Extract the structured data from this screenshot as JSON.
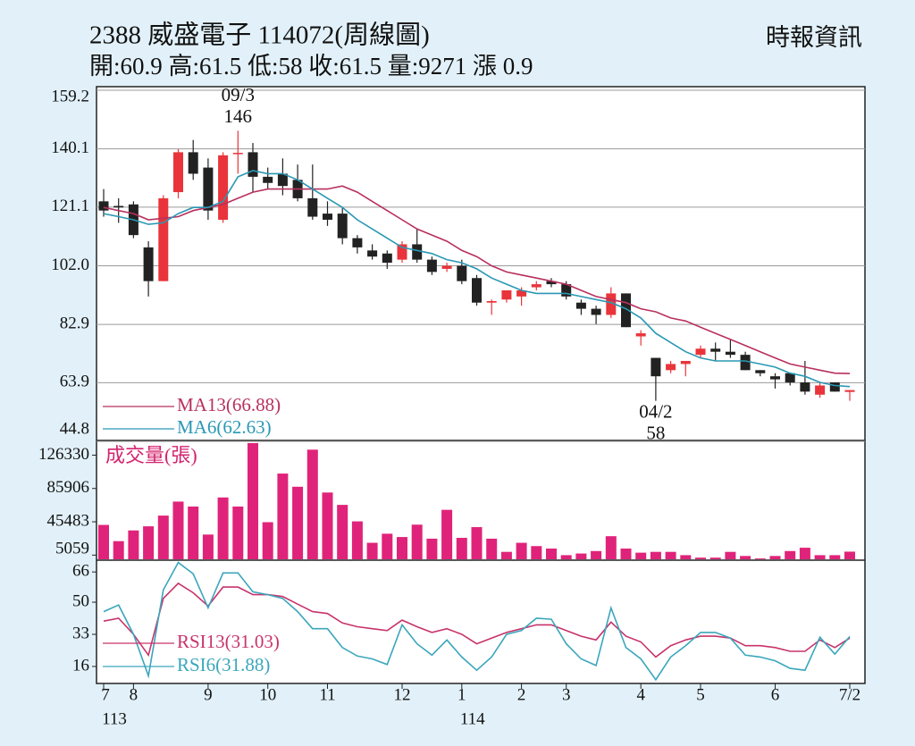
{
  "chart_data": [
    {
      "type": "candlestick",
      "title": "2388  威盛電子 114072(周線圖)",
      "subtitle": "開:60.9 高:61.5 低:58 收:61.5 量:9271 漲 0.9",
      "source": "時報資訊",
      "open": [
        123,
        121.5,
        122,
        108,
        97,
        126,
        139,
        134,
        117,
        138.5,
        139,
        131,
        132,
        130,
        124,
        119,
        119,
        111,
        107,
        106,
        104,
        109,
        104,
        101,
        102,
        98,
        90,
        91,
        92,
        95,
        97,
        96,
        90,
        88,
        86,
        93,
        79,
        72,
        68,
        70,
        73,
        75,
        74,
        73,
        68,
        66,
        67,
        64,
        60,
        64,
        60.9
      ],
      "high": [
        127,
        124,
        123,
        110,
        125,
        140,
        143,
        137,
        139,
        146,
        142,
        134,
        137,
        135,
        135,
        123,
        121,
        112,
        109,
        107,
        110,
        114,
        105,
        103,
        104,
        99,
        91,
        94,
        95,
        97,
        98,
        97,
        91,
        89,
        95,
        93,
        81,
        72,
        71,
        71,
        76,
        77,
        78,
        74,
        68,
        67,
        67,
        71,
        64,
        64,
        61.5
      ],
      "low": [
        118,
        116,
        111,
        92,
        97,
        124,
        130,
        117,
        116,
        132,
        126,
        127,
        125,
        123,
        117,
        115,
        109,
        106,
        104,
        101,
        103,
        103,
        99,
        100,
        96,
        89,
        86,
        90,
        89,
        94,
        95,
        91,
        86,
        83,
        85,
        82,
        76,
        58,
        67,
        66,
        72,
        71,
        72,
        68,
        66,
        62,
        63,
        60,
        59,
        61,
        58
      ],
      "close": [
        120,
        121,
        112,
        97,
        124,
        139,
        132,
        120,
        138,
        138.8,
        131,
        129,
        128,
        124,
        118,
        117,
        111,
        108,
        105,
        103,
        109,
        104,
        100,
        102,
        97,
        90,
        90.5,
        94,
        94,
        96,
        96,
        92,
        88,
        86,
        93,
        82,
        80,
        66,
        70,
        71,
        75,
        74,
        73,
        68,
        67,
        65,
        64,
        61,
        63,
        61,
        61.5
      ],
      "up_color": "#e8343a",
      "down_color": "#222222",
      "series": [
        {
          "name": "MA13(66.88)",
          "color": "#b8305e",
          "values": [
            121,
            120,
            119,
            117,
            117.5,
            118,
            120,
            121,
            122,
            124,
            126,
            127,
            127,
            127,
            127,
            127,
            128,
            126,
            123,
            120,
            117,
            114,
            112,
            110,
            107,
            105,
            102,
            100,
            99,
            98,
            97,
            96,
            94,
            92,
            91,
            90,
            88,
            87,
            85,
            84,
            82,
            80,
            78,
            76,
            74,
            72,
            70,
            69,
            68,
            67,
            66.88
          ]
        },
        {
          "name": "MA6(62.63)",
          "color": "#2a98b4",
          "values": [
            119,
            118,
            117,
            115.5,
            116,
            119,
            121,
            121,
            123,
            131,
            133,
            132,
            132,
            130,
            127,
            124,
            121,
            117,
            114,
            111,
            108,
            107,
            106,
            104,
            103,
            101,
            98,
            96,
            94,
            93,
            93,
            93,
            92,
            91,
            90,
            88,
            85,
            80,
            77,
            74,
            72,
            71,
            71,
            71,
            70,
            69,
            67,
            66,
            64,
            63,
            62.63
          ]
        }
      ],
      "annotations": [
        {
          "date": "09/3",
          "value": 146
        },
        {
          "date": "04/2",
          "value": 58
        }
      ],
      "ylim": [
        44.8,
        159.2
      ],
      "yticks": [
        44.8,
        63.9,
        82.9,
        {
          "value": 102,
          "label": "102.0"
        },
        121.1,
        140.1,
        159.2
      ],
      "grid": true
    },
    {
      "type": "bar",
      "title": "成交量(張)",
      "color": "#e0237a",
      "values": [
        41700,
        22000,
        35000,
        40000,
        53000,
        70000,
        64000,
        30000,
        75000,
        64000,
        141000,
        45000,
        104000,
        88000,
        133000,
        81000,
        66000,
        46000,
        20000,
        31000,
        27000,
        42000,
        25000,
        60000,
        26000,
        39000,
        25000,
        9000,
        20000,
        16000,
        13000,
        5000,
        7000,
        10000,
        28000,
        13000,
        8000,
        9000,
        9000,
        5000,
        2000,
        2000,
        9000,
        4000,
        1000,
        4000,
        10000,
        14000,
        5000,
        5000,
        9271
      ],
      "ylim": [
        0,
        142000
      ],
      "yticks": [
        5059,
        45483,
        85906,
        126330
      ]
    },
    {
      "type": "line",
      "categories": [
        "7",
        null,
        "8",
        null,
        null,
        null,
        null,
        "9",
        null,
        null,
        null,
        "10",
        null,
        null,
        null,
        "11",
        null,
        null,
        null,
        null,
        "12",
        null,
        null,
        null,
        "1",
        null,
        null,
        null,
        "2",
        null,
        null,
        "3",
        null,
        null,
        null,
        null,
        "4",
        null,
        null,
        null,
        "5",
        null,
        null,
        null,
        null,
        "6",
        null,
        null,
        null,
        null,
        "7/2"
      ],
      "category_years": [
        "113",
        null,
        null,
        null,
        null,
        null,
        null,
        null,
        null,
        null,
        null,
        null,
        null,
        null,
        null,
        null,
        null,
        null,
        null,
        null,
        null,
        null,
        null,
        null,
        "114",
        null,
        null,
        null,
        null,
        null,
        null,
        null,
        null,
        null,
        null,
        null,
        null,
        null,
        null,
        null,
        null,
        null,
        null,
        null,
        null,
        null,
        null,
        null,
        null,
        null,
        null
      ],
      "series": [
        {
          "name": "RSI13(31.03)",
          "color": "#c8336b",
          "values": [
            40,
            41.5,
            33,
            22,
            52,
            60,
            55,
            48,
            58,
            58,
            54,
            54,
            53,
            49,
            45,
            44,
            39,
            37,
            36,
            35,
            40.5,
            37,
            34,
            36,
            33,
            28,
            31,
            34,
            36,
            38,
            38,
            35,
            32,
            30,
            39.5,
            32,
            29,
            21,
            27,
            30,
            32,
            32,
            31,
            27,
            27,
            26,
            24,
            24,
            30,
            26,
            31.03
          ]
        },
        {
          "name": "RSI6(31.88)",
          "color": "#3aa6bc",
          "values": [
            45,
            48.5,
            33,
            11,
            56.5,
            71,
            65,
            47,
            65.5,
            65.5,
            55.5,
            54,
            52,
            45,
            36,
            36,
            26,
            21.5,
            20,
            17,
            38,
            28,
            22,
            30,
            21,
            14,
            21,
            33,
            35,
            41.5,
            41,
            28,
            20,
            16.5,
            47,
            26,
            20,
            9,
            21,
            27,
            34,
            34,
            31,
            22,
            21,
            19,
            15,
            14,
            31.5,
            22.5,
            31.88
          ]
        }
      ],
      "ylim": [
        7,
        72
      ],
      "yticks": [
        16,
        33,
        50,
        66
      ]
    }
  ]
}
